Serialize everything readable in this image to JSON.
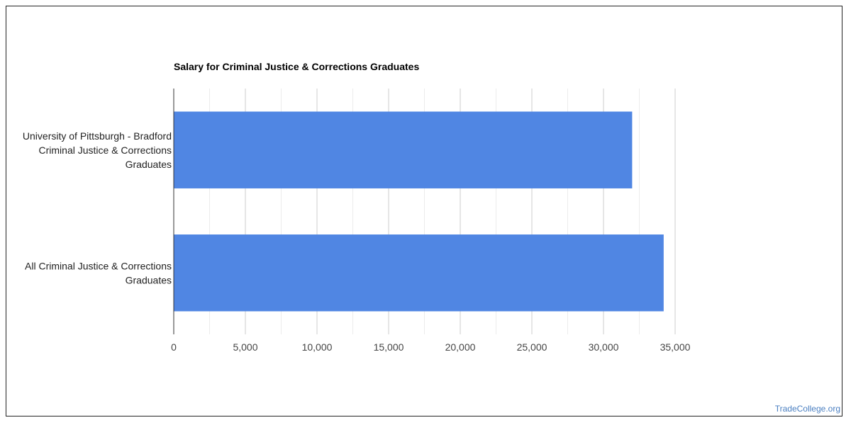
{
  "chart_data": {
    "type": "bar",
    "orientation": "horizontal",
    "title": "Salary for Criminal Justice & Corrections Graduates",
    "categories": [
      [
        "University of Pittsburgh - Bradford",
        "Criminal Justice & Corrections",
        "Graduates"
      ],
      [
        "All Criminal Justice & Corrections",
        "Graduates"
      ]
    ],
    "values": [
      32000,
      34200
    ],
    "xlim": [
      0,
      35000
    ],
    "xticks": [
      "0",
      "5,000",
      "10,000",
      "15,000",
      "20,000",
      "25,000",
      "30,000",
      "35,000"
    ],
    "xtick_values": [
      0,
      5000,
      10000,
      15000,
      20000,
      25000,
      30000,
      35000
    ],
    "grid": true,
    "bar_color": "#5086e3"
  },
  "watermark": "TradeCollege.org"
}
